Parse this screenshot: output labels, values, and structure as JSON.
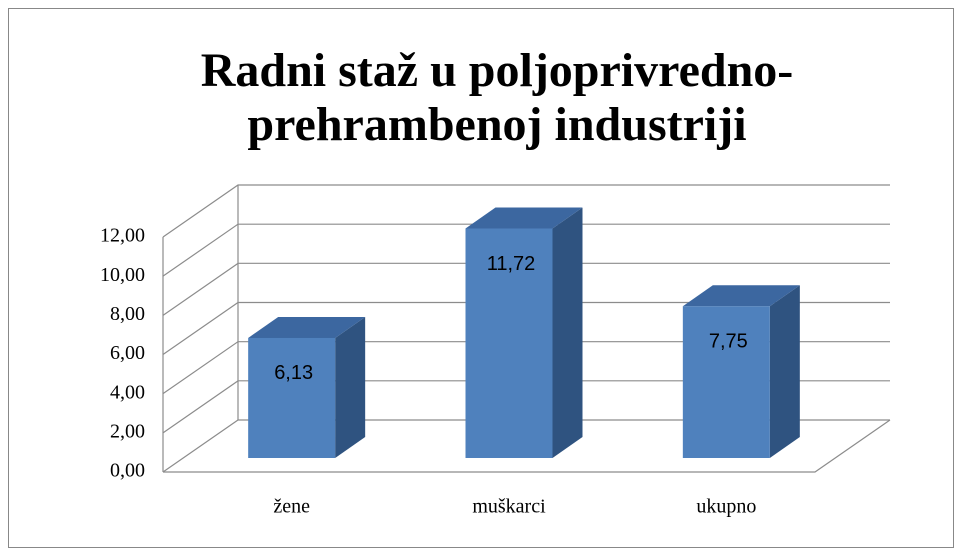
{
  "chart_data": {
    "type": "bar3d",
    "title": "Radni staž u poljoprivredno-prehrambenoj industriji",
    "categories": [
      "žene",
      "muškarci",
      "ukupno"
    ],
    "values": [
      6.13,
      11.72,
      7.75
    ],
    "value_labels": [
      "6,13",
      "11,72",
      "7,75"
    ],
    "color": "#4f81bd",
    "ylim": [
      0,
      12
    ],
    "yticks": [
      {
        "value": 0,
        "label": "0,00"
      },
      {
        "value": 2,
        "label": "2,00"
      },
      {
        "value": 4,
        "label": "4,00"
      },
      {
        "value": 6,
        "label": "6,00"
      },
      {
        "value": 8,
        "label": "8,00"
      },
      {
        "value": 10,
        "label": "10,00"
      },
      {
        "value": 12,
        "label": "12,00"
      }
    ],
    "grid": true
  }
}
